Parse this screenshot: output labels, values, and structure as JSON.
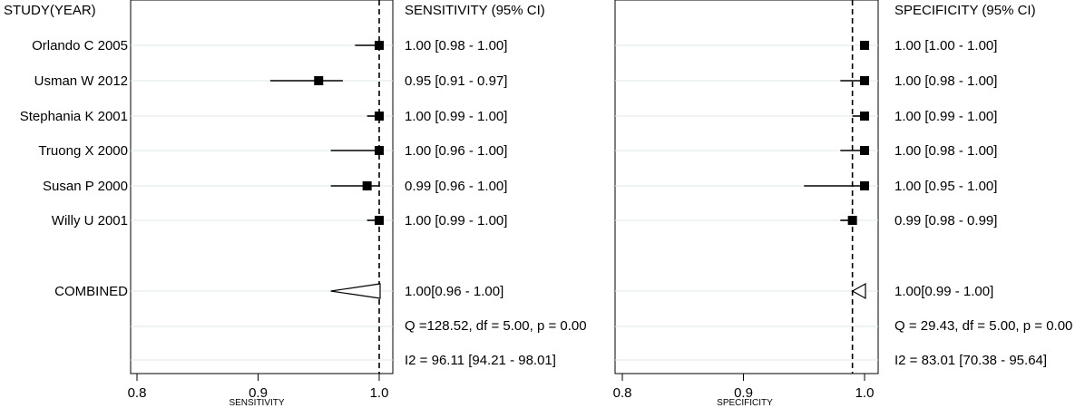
{
  "header": {
    "study_label": "STUDY(YEAR)",
    "sensitivity_label": "SENSITIVITY (95% CI)",
    "specificity_label": "SPECIFICITY (95% CI)"
  },
  "studies": [
    "Orlando C 2005",
    "Usman W 2012",
    "Stephania K 2001",
    "Truong X 2000",
    "Susan P 2000",
    "Willy U 2001"
  ],
  "combined_label": "COMBINED",
  "chart_data": [
    {
      "type": "forest",
      "xlabel": "SENSITIVITY",
      "xlim": [
        0.8,
        1.0
      ],
      "ticks": [
        0.8,
        0.9,
        1.0
      ],
      "tick_labels": [
        "0.8",
        "0.9",
        "1.0"
      ],
      "reference_line": 1.0,
      "points": [
        {
          "study": "Orlando C 2005",
          "est": 1.0,
          "lo": 0.98,
          "hi": 1.0,
          "label": "1.00 [0.98 - 1.00]"
        },
        {
          "study": "Usman W 2012",
          "est": 0.95,
          "lo": 0.91,
          "hi": 0.97,
          "label": "0.95 [0.91 - 0.97]"
        },
        {
          "study": "Stephania K 2001",
          "est": 1.0,
          "lo": 0.99,
          "hi": 1.0,
          "label": "1.00 [0.99 - 1.00]"
        },
        {
          "study": "Truong X 2000",
          "est": 1.0,
          "lo": 0.96,
          "hi": 1.0,
          "label": "1.00 [0.96 - 1.00]"
        },
        {
          "study": "Susan P 2000",
          "est": 0.99,
          "lo": 0.96,
          "hi": 1.0,
          "label": "0.99 [0.96 - 1.00]"
        },
        {
          "study": "Willy U 2001",
          "est": 1.0,
          "lo": 0.99,
          "hi": 1.0,
          "label": "1.00 [0.99 - 1.00]"
        }
      ],
      "combined": {
        "est": 1.0,
        "lo": 0.96,
        "hi": 1.0,
        "label": "1.00[0.96 - 1.00]"
      },
      "heterogeneity_q": "Q =128.52, df = 5.00, p =  0.00",
      "heterogeneity_i2": "I2 = 96.11 [94.21 - 98.01]"
    },
    {
      "type": "forest",
      "xlabel": "SPECIFICITY",
      "xlim": [
        0.8,
        1.0
      ],
      "ticks": [
        0.8,
        0.9,
        1.0
      ],
      "tick_labels": [
        "0.8",
        "0.9",
        "1.0"
      ],
      "reference_line": 0.99,
      "points": [
        {
          "study": "Orlando C 2005",
          "est": 1.0,
          "lo": 1.0,
          "hi": 1.0,
          "label": "1.00 [1.00 - 1.00]"
        },
        {
          "study": "Usman W 2012",
          "est": 1.0,
          "lo": 0.98,
          "hi": 1.0,
          "label": "1.00 [0.98 - 1.00]"
        },
        {
          "study": "Stephania K 2001",
          "est": 1.0,
          "lo": 0.99,
          "hi": 1.0,
          "label": "1.00 [0.99 - 1.00]"
        },
        {
          "study": "Truong X 2000",
          "est": 1.0,
          "lo": 0.98,
          "hi": 1.0,
          "label": "1.00 [0.98 - 1.00]"
        },
        {
          "study": "Susan P 2000",
          "est": 1.0,
          "lo": 0.95,
          "hi": 1.0,
          "label": "1.00 [0.95 - 1.00]"
        },
        {
          "study": "Willy U 2001",
          "est": 0.99,
          "lo": 0.98,
          "hi": 0.99,
          "label": "0.99 [0.98 - 0.99]"
        }
      ],
      "combined": {
        "est": 1.0,
        "lo": 0.99,
        "hi": 1.0,
        "label": "1.00[0.99 - 1.00]"
      },
      "heterogeneity_q": "Q = 29.43, df = 5.00, p =  0.00",
      "heterogeneity_i2": "I2 = 83.01 [70.38 - 95.64]"
    }
  ]
}
